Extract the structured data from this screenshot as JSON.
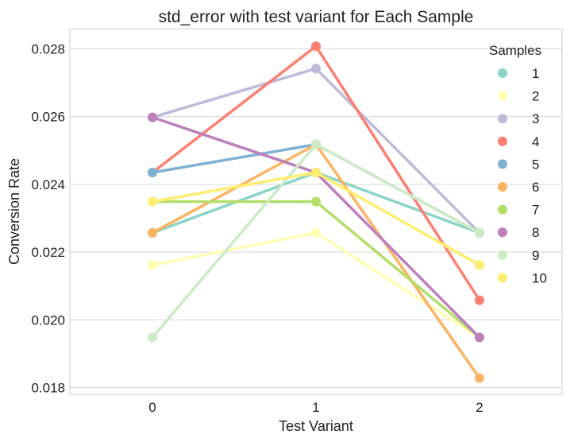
{
  "chart_data": {
    "type": "line",
    "title": "std_error with test variant for Each Sample",
    "xlabel": "Test Variant",
    "ylabel": "Conversion Rate",
    "categories": [
      "0",
      "1",
      "2"
    ],
    "ylim": [
      0.0178,
      0.0286
    ],
    "yticks": [
      0.018,
      0.02,
      0.022,
      0.024,
      0.026,
      0.028
    ],
    "ytick_labels": [
      "0.018",
      "0.020",
      "0.022",
      "0.024",
      "0.026",
      "0.028"
    ],
    "grid": true,
    "legend": {
      "title": "Samples",
      "placement": "top-right"
    },
    "series": [
      {
        "name": "1",
        "color": "#8dd3c7",
        "values": [
          0.02257,
          0.02435,
          0.02257
        ]
      },
      {
        "name": "2",
        "color": "#ffffb3",
        "values": [
          0.02162,
          0.02257,
          0.01948
        ]
      },
      {
        "name": "3",
        "color": "#bebada",
        "values": [
          0.02598,
          0.02742,
          0.02257
        ]
      },
      {
        "name": "4",
        "color": "#fb8072",
        "values": [
          0.02435,
          0.02808,
          0.02058
        ]
      },
      {
        "name": "5",
        "color": "#80b1d3",
        "values": [
          0.02435,
          0.02518,
          0.02257
        ]
      },
      {
        "name": "6",
        "color": "#fdb462",
        "values": [
          0.02257,
          0.02518,
          0.01828
        ]
      },
      {
        "name": "7",
        "color": "#b3de69",
        "values": [
          0.02349,
          0.02349,
          0.01948
        ]
      },
      {
        "name": "8",
        "color": "#bc80bd",
        "values": [
          0.02598,
          0.02435,
          0.01948
        ]
      },
      {
        "name": "9",
        "color": "#ccebc5",
        "values": [
          0.01948,
          0.02518,
          0.02257
        ]
      },
      {
        "name": "10",
        "color": "#ffed6f",
        "values": [
          0.02349,
          0.02435,
          0.02162
        ]
      }
    ]
  }
}
